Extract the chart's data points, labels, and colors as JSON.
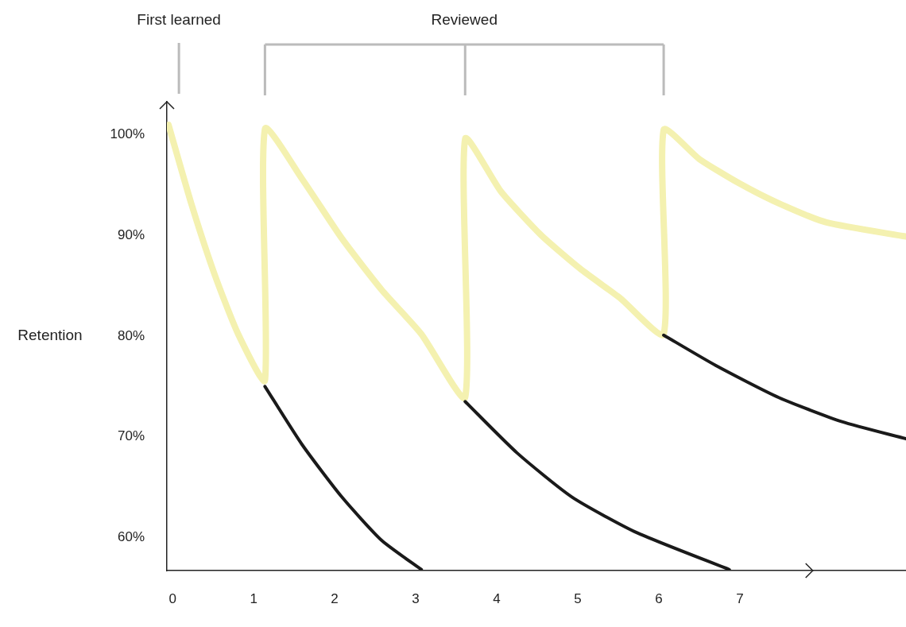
{
  "chart_data": {
    "type": "line",
    "ylabel": "Retention",
    "annotations": [
      "First learned",
      "Reviewed"
    ],
    "xlim": [
      -0.07,
      9.05
    ],
    "xticks": [
      0,
      1,
      2,
      3,
      4,
      5,
      6,
      7
    ],
    "ylim": [
      56.7,
      103.3
    ],
    "yticks": [
      {
        "value": 60,
        "label": "60%"
      },
      {
        "value": 70,
        "label": "70%"
      },
      {
        "value": 80,
        "label": "80%"
      },
      {
        "value": 90,
        "label": "90%"
      },
      {
        "value": 100,
        "label": "100%"
      }
    ],
    "grid": false,
    "legend": false,
    "marker": "none",
    "line_style": "solid",
    "series": [
      {
        "color": "#1a1a1a",
        "x": [
          1.14,
          1.6,
          2.09,
          2.58,
          3.07
        ],
        "values": [
          75.0,
          69.2,
          64.0,
          59.7,
          56.8
        ]
      },
      {
        "color": "#1a1a1a",
        "x": [
          3.61,
          4.25,
          4.93,
          5.72,
          6.87
        ],
        "values": [
          73.5,
          68.4,
          64.0,
          60.5,
          56.8
        ]
      },
      {
        "color": "#1a1a1a",
        "x": [
          6.06,
          6.7,
          7.48,
          8.26,
          9.05
        ],
        "values": [
          80.1,
          77.1,
          73.9,
          71.5,
          69.8
        ]
      },
      {
        "color": "#f4f1b0",
        "x": [
          -0.05,
          0.23,
          0.52,
          0.81,
          1.14,
          1.14,
          1.6,
          2.09,
          2.58,
          3.07,
          3.61,
          3.61,
          4.05,
          4.54,
          5.03,
          5.52,
          6.06,
          6.06,
          6.5,
          6.99,
          7.48,
          8.07,
          9.05
        ],
        "values": [
          101.0,
          93.2,
          86.1,
          80.2,
          75.6,
          100.6,
          95.6,
          89.7,
          84.6,
          80.2,
          73.9,
          99.6,
          94.4,
          90.1,
          86.7,
          83.8,
          80.2,
          100.5,
          97.6,
          95.2,
          93.2,
          91.3,
          89.9
        ]
      }
    ]
  }
}
